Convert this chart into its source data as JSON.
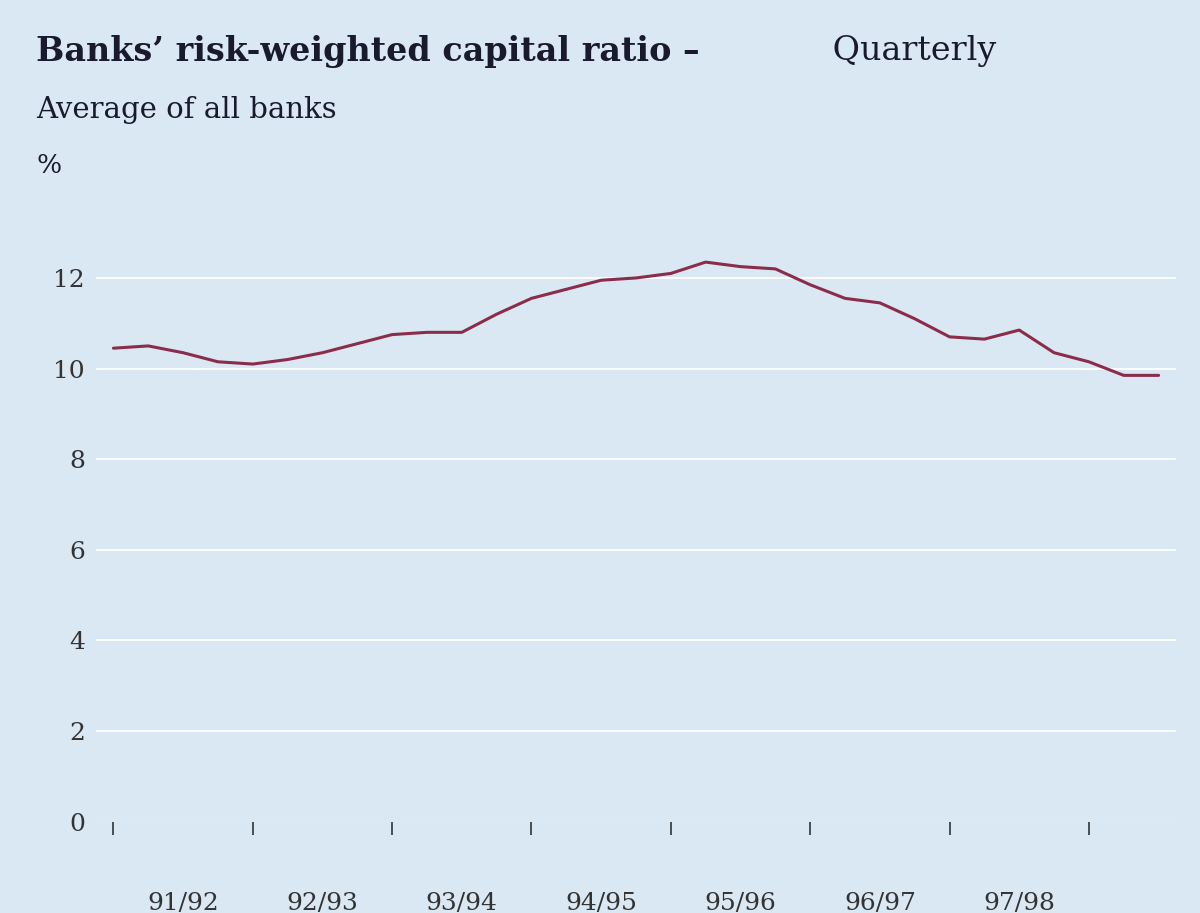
{
  "title_bold": "Banks’ risk-weighted capital ratio –",
  "title_light": " Quarterly",
  "subtitle": "Average of all banks",
  "ylabel": "%",
  "line_color": "#8B2D4A",
  "line_width": 2.2,
  "header_bg_color": "#BDC8D9",
  "plot_bg_color": "#DAE8F4",
  "yticks": [
    0,
    2,
    4,
    6,
    8,
    10,
    12
  ],
  "ylim": [
    0,
    13.5
  ],
  "xtick_labels": [
    "91/92",
    "92/93",
    "93/94",
    "94/95",
    "95/96",
    "96/97",
    "97/98"
  ],
  "y_values": [
    10.45,
    10.5,
    10.35,
    10.15,
    10.1,
    10.2,
    10.35,
    10.55,
    10.75,
    10.8,
    10.8,
    11.2,
    11.55,
    11.75,
    11.95,
    12.0,
    12.1,
    12.35,
    12.25,
    12.2,
    11.85,
    11.55,
    11.45,
    11.1,
    10.7,
    10.65,
    10.85,
    10.35,
    10.15,
    9.85,
    9.85
  ],
  "text_color": "#1a1a2e",
  "grid_color": "#ffffff",
  "tick_color": "#333333"
}
